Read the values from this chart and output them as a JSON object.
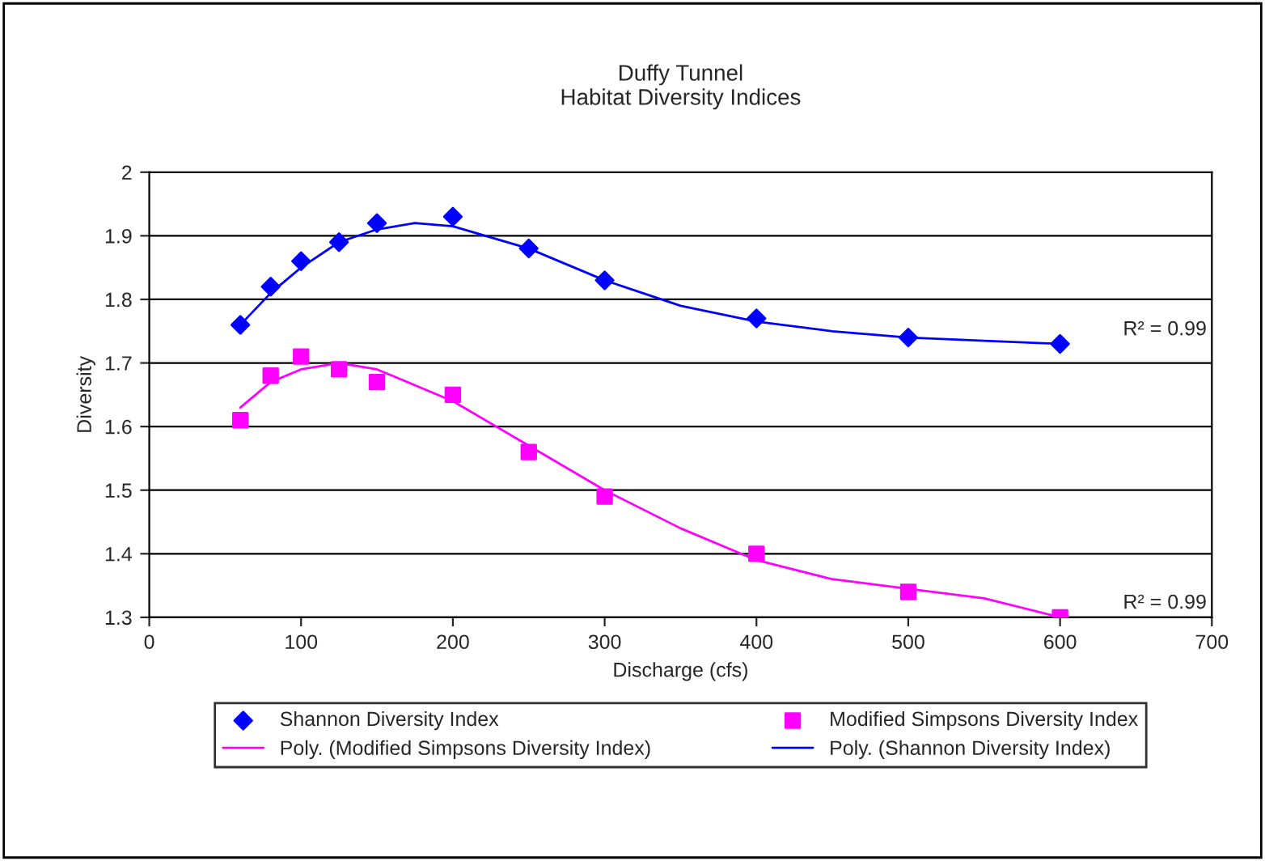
{
  "chart_data": {
    "type": "scatter",
    "title": "Duffy Tunnel\nHabitat Diversity Indices",
    "xlabel": "Discharge (cfs)",
    "ylabel": "Diversity",
    "xlim": [
      0,
      700
    ],
    "xticks": [
      0,
      100,
      200,
      300,
      400,
      500,
      600,
      700
    ],
    "ylim": [
      1.3,
      2
    ],
    "yticks": [
      1.3,
      1.4,
      1.5,
      1.6,
      1.7,
      1.8,
      1.9,
      2
    ],
    "grid": "y",
    "legend": "bottom",
    "series": [
      {
        "name": "Shannon Diversity Index",
        "marker": "diamond",
        "color": "#0000ff",
        "x": [
          60,
          80,
          100,
          125,
          150,
          200,
          250,
          300,
          400,
          500,
          600
        ],
        "values": [
          1.76,
          1.82,
          1.86,
          1.89,
          1.92,
          1.93,
          1.88,
          1.83,
          1.77,
          1.74,
          1.73
        ]
      },
      {
        "name": "Modified Simpsons Diversity Index",
        "marker": "square",
        "color": "#ff00ff",
        "x": [
          60,
          80,
          100,
          125,
          150,
          200,
          250,
          300,
          400,
          500,
          600
        ],
        "values": [
          1.61,
          1.68,
          1.71,
          1.69,
          1.67,
          1.65,
          1.56,
          1.49,
          1.4,
          1.34,
          1.3
        ]
      },
      {
        "name": "Poly. (Modified Simpsons Diversity Index)",
        "type": "line",
        "line_style": "solid",
        "color": "#ff00ff",
        "x": [
          60,
          80,
          100,
          125,
          150,
          200,
          250,
          300,
          350,
          400,
          450,
          500,
          550,
          600
        ],
        "values": [
          1.63,
          1.67,
          1.69,
          1.7,
          1.69,
          1.64,
          1.57,
          1.5,
          1.44,
          1.39,
          1.36,
          1.345,
          1.33,
          1.3
        ]
      },
      {
        "name": "Poly. (Shannon Diversity Index)",
        "type": "line",
        "line_style": "solid",
        "color": "#0000ff",
        "x": [
          60,
          80,
          100,
          125,
          150,
          175,
          200,
          250,
          300,
          350,
          400,
          450,
          500,
          550,
          600
        ],
        "values": [
          1.76,
          1.81,
          1.85,
          1.89,
          1.91,
          1.92,
          1.915,
          1.88,
          1.83,
          1.79,
          1.765,
          1.75,
          1.74,
          1.735,
          1.73
        ]
      }
    ],
    "annotations": [
      "R² = 0.99",
      "R² = 0.99"
    ]
  }
}
